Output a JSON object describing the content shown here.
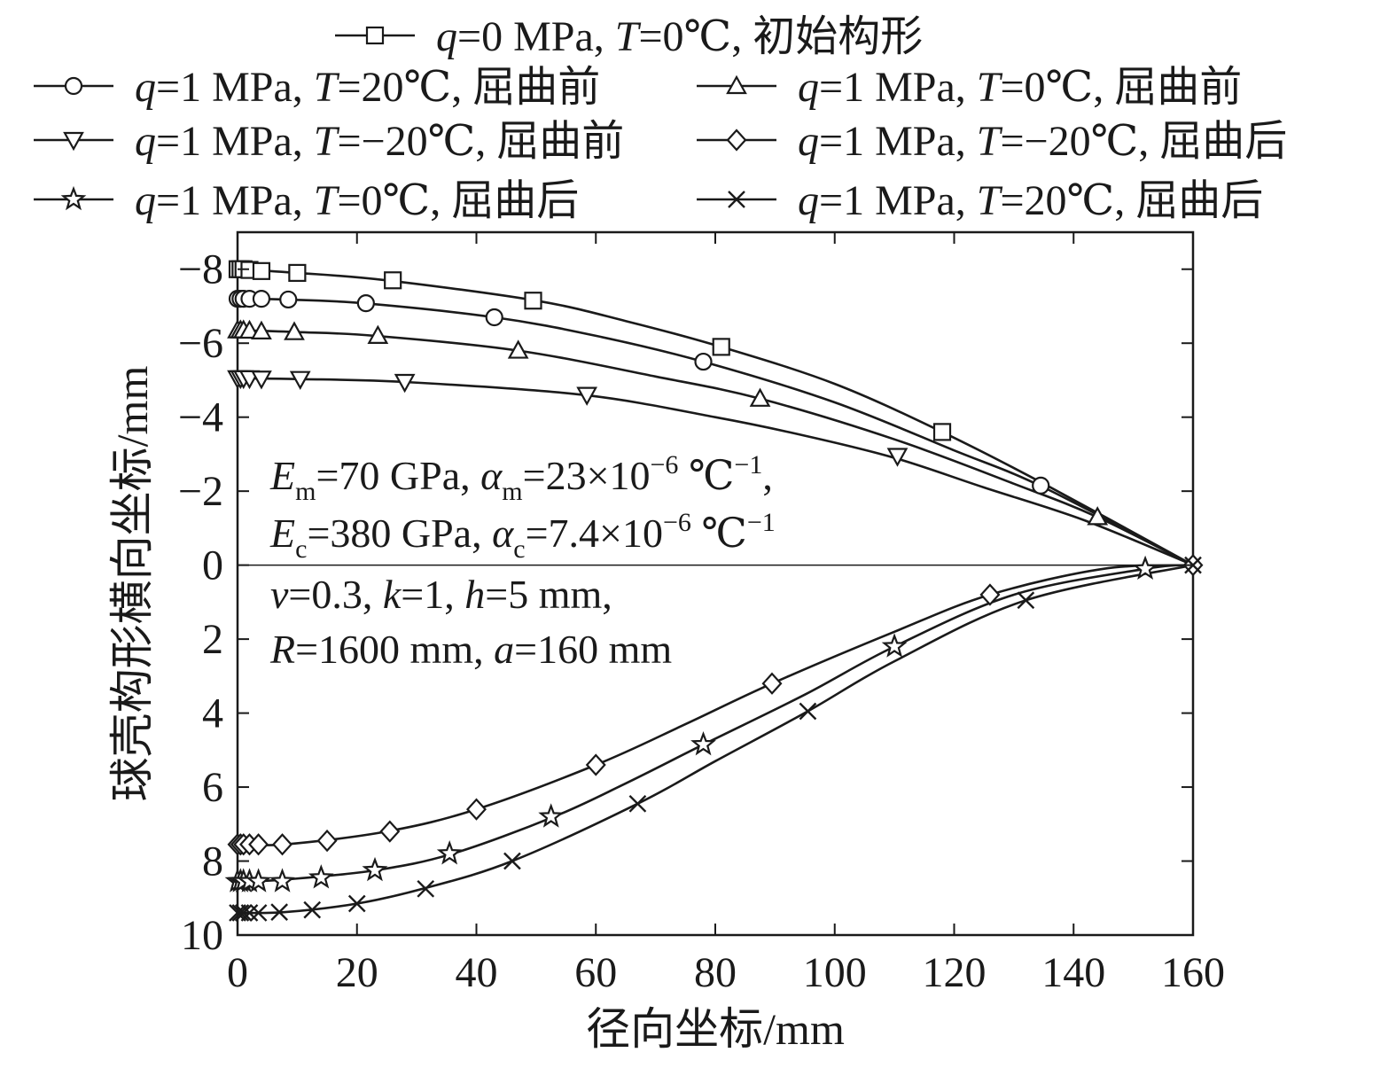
{
  "chart_data": {
    "type": "line",
    "xlabel": "径向坐标/mm",
    "ylabel": "球壳构形横向坐标/mm",
    "xlim": [
      0,
      160
    ],
    "ylim": [
      -9,
      10
    ],
    "y_inverted": true,
    "xticks": [
      0,
      20,
      40,
      60,
      80,
      100,
      120,
      140,
      160
    ],
    "yticks": [
      -8,
      -6,
      -4,
      -2,
      0,
      2,
      4,
      6,
      8,
      10
    ],
    "xtick_labels": [
      "0",
      "20",
      "40",
      "60",
      "80",
      "100",
      "120",
      "140",
      "160"
    ],
    "ytick_labels": [
      "−8",
      "−6",
      "−4",
      "−2",
      "0",
      "2",
      "4",
      "6",
      "8",
      "10"
    ],
    "grid": false,
    "legend_position": "top",
    "series": [
      {
        "key": "s0",
        "name": "q=0 MPa, T=0℃, 初始构形",
        "marker": "square",
        "curve_x": [
          0,
          10,
          25,
          50,
          65,
          81,
          100,
          118,
          135,
          160
        ],
        "curve_y": [
          -8.0,
          -7.9,
          -7.7,
          -7.15,
          -6.6,
          -5.9,
          -4.9,
          -3.6,
          -2.2,
          0.0
        ],
        "marker_x": [
          0,
          0.5,
          1,
          2,
          4,
          10,
          26,
          49.5,
          81,
          118
        ],
        "marker_y": [
          -8.0,
          -8.0,
          -8.0,
          -7.98,
          -7.95,
          -7.9,
          -7.7,
          -7.15,
          -5.9,
          -3.6
        ]
      },
      {
        "key": "s1",
        "name": "q=1 MPa, T=20℃, 屈曲前",
        "marker": "circle",
        "curve_x": [
          0,
          8,
          21,
          43,
          60,
          78,
          100,
          120,
          135,
          160
        ],
        "curve_y": [
          -7.2,
          -7.18,
          -7.08,
          -6.7,
          -6.2,
          -5.5,
          -4.4,
          -3.1,
          -2.1,
          0.0
        ],
        "marker_x": [
          0,
          0.5,
          1,
          2,
          4,
          8.5,
          21.5,
          43,
          78,
          134.5
        ],
        "marker_y": [
          -7.2,
          -7.2,
          -7.2,
          -7.2,
          -7.2,
          -7.18,
          -7.08,
          -6.7,
          -5.5,
          -2.15
        ]
      },
      {
        "key": "s2",
        "name": "q=1 MPa, T=0℃, 屈曲前",
        "marker": "triangle-up",
        "curve_x": [
          0,
          10,
          23,
          47,
          70,
          87.5,
          110,
          130,
          144,
          160
        ],
        "curve_y": [
          -6.35,
          -6.3,
          -6.2,
          -5.8,
          -5.1,
          -4.5,
          -3.4,
          -2.2,
          -1.3,
          0.0
        ],
        "marker_x": [
          0,
          0.5,
          1,
          2,
          4,
          9.5,
          23.5,
          47,
          87.5,
          144
        ],
        "marker_y": [
          -6.35,
          -6.35,
          -6.35,
          -6.34,
          -6.32,
          -6.3,
          -6.2,
          -5.8,
          -4.5,
          -1.3
        ]
      },
      {
        "key": "s3",
        "name": "q=1 MPa, T=−20℃, 屈曲前",
        "marker": "triangle-down",
        "curve_x": [
          0,
          10,
          28,
          58,
          80,
          95,
          110,
          125,
          142,
          160
        ],
        "curve_y": [
          -5.05,
          -5.03,
          -4.95,
          -4.6,
          -4.0,
          -3.5,
          -2.9,
          -2.1,
          -1.2,
          0.0
        ],
        "marker_x": [
          0,
          0.5,
          1,
          2,
          4,
          10.5,
          28,
          58.5,
          110.5
        ],
        "marker_y": [
          -5.05,
          -5.05,
          -5.05,
          -5.05,
          -5.04,
          -5.03,
          -4.95,
          -4.6,
          -2.95
        ]
      },
      {
        "key": "s4",
        "name": "q=1 MPa, T=−20℃, 屈曲后",
        "marker": "diamond",
        "curve_x": [
          0,
          8,
          25,
          40,
          60,
          75,
          89.5,
          110,
          126,
          145,
          160
        ],
        "curve_y": [
          7.55,
          7.55,
          7.2,
          6.6,
          5.4,
          4.3,
          3.2,
          1.8,
          0.8,
          0.1,
          0.0
        ],
        "marker_x": [
          0,
          0.5,
          1,
          2,
          3.5,
          7.5,
          15,
          25.5,
          40,
          60,
          89.5,
          126,
          160
        ],
        "marker_y": [
          7.55,
          7.55,
          7.55,
          7.55,
          7.55,
          7.55,
          7.45,
          7.2,
          6.6,
          5.4,
          3.2,
          0.8,
          0.0
        ]
      },
      {
        "key": "s5",
        "name": "q=1 MPa, T=0℃, 屈曲后",
        "marker": "star",
        "curve_x": [
          0,
          8,
          23,
          36,
          53,
          65,
          78,
          95,
          110,
          130,
          152,
          160
        ],
        "curve_y": [
          8.55,
          8.5,
          8.25,
          7.8,
          6.8,
          5.9,
          4.85,
          3.5,
          2.2,
          0.8,
          0.1,
          0.0
        ],
        "marker_x": [
          0,
          0.5,
          1,
          2,
          3.5,
          7.5,
          14,
          23,
          35.5,
          52.5,
          78,
          110,
          152
        ],
        "marker_y": [
          8.55,
          8.55,
          8.55,
          8.55,
          8.55,
          8.55,
          8.45,
          8.25,
          7.8,
          6.8,
          4.85,
          2.2,
          0.1
        ]
      },
      {
        "key": "s6",
        "name": "q=1 MPa, T=20℃, 屈曲后",
        "marker": "cross",
        "curve_x": [
          0,
          8,
          20,
          31,
          46,
          67,
          80,
          95.5,
          110,
          132,
          160
        ],
        "curve_y": [
          9.4,
          9.38,
          9.15,
          8.75,
          8.0,
          6.45,
          5.3,
          3.95,
          2.6,
          0.95,
          0.0
        ],
        "marker_x": [
          0,
          0.5,
          1,
          2,
          3.5,
          7,
          12.5,
          20,
          31.5,
          46,
          67,
          95.5,
          132,
          160
        ],
        "marker_y": [
          9.4,
          9.4,
          9.4,
          9.4,
          9.4,
          9.38,
          9.32,
          9.15,
          8.75,
          8.0,
          6.45,
          3.95,
          0.95,
          0.0
        ]
      }
    ],
    "zero_line": true,
    "annotation": {
      "line1_parts": [
        [
          "E",
          "it"
        ],
        [
          "m",
          "sub"
        ],
        [
          "=70 GPa, ",
          ""
        ],
        [
          "α",
          "it"
        ],
        [
          "m",
          "sub"
        ],
        [
          "=23×10",
          ""
        ],
        [
          "−6",
          "sup"
        ],
        [
          " ℃",
          ""
        ],
        [
          "−1",
          "sup"
        ],
        [
          ",",
          ""
        ]
      ],
      "line2_parts": [
        [
          "E",
          "it"
        ],
        [
          "c",
          "sub"
        ],
        [
          "=380 GPa, ",
          ""
        ],
        [
          "α",
          "it"
        ],
        [
          "c",
          "sub"
        ],
        [
          "=7.4×10",
          ""
        ],
        [
          "−6",
          "sup"
        ],
        [
          " ℃",
          ""
        ],
        [
          "−1",
          "sup"
        ]
      ],
      "line3_parts": [
        [
          "ν",
          "it"
        ],
        [
          "=0.3, ",
          ""
        ],
        [
          "k",
          "it"
        ],
        [
          "=1, ",
          ""
        ],
        [
          "h",
          "it"
        ],
        [
          "=5 mm,",
          ""
        ]
      ],
      "line4_parts": [
        [
          "R",
          "it"
        ],
        [
          "=1600 mm, ",
          ""
        ],
        [
          "a",
          "it"
        ],
        [
          "=160 mm",
          ""
        ]
      ]
    },
    "legend_parts": {
      "s0": [
        [
          "q",
          "it"
        ],
        [
          "=0 MPa, ",
          ""
        ],
        [
          "T",
          "it"
        ],
        [
          "=0℃, 初始构形",
          ""
        ]
      ],
      "s1": [
        [
          "q",
          "it"
        ],
        [
          "=1 MPa, ",
          ""
        ],
        [
          "T",
          "it"
        ],
        [
          "=20℃, 屈曲前",
          ""
        ]
      ],
      "s2": [
        [
          "q",
          "it"
        ],
        [
          "=1 MPa, ",
          ""
        ],
        [
          "T",
          "it"
        ],
        [
          "=0℃, 屈曲前",
          ""
        ]
      ],
      "s3": [
        [
          "q",
          "it"
        ],
        [
          "=1 MPa, ",
          ""
        ],
        [
          "T",
          "it"
        ],
        [
          "=−20℃, 屈曲前",
          ""
        ]
      ],
      "s4": [
        [
          "q",
          "it"
        ],
        [
          "=1 MPa, ",
          ""
        ],
        [
          "T",
          "it"
        ],
        [
          "=−20℃, 屈曲后",
          ""
        ]
      ],
      "s5": [
        [
          "q",
          "it"
        ],
        [
          "=1 MPa, ",
          ""
        ],
        [
          "T",
          "it"
        ],
        [
          "=0℃, 屈曲后",
          ""
        ]
      ],
      "s6": [
        [
          "q",
          "it"
        ],
        [
          "=1 MPa, ",
          ""
        ],
        [
          "T",
          "it"
        ],
        [
          "=20℃, 屈曲后",
          ""
        ]
      ]
    },
    "colors": {
      "line": "#1a1a1a",
      "marker_fill": "#ffffff"
    }
  }
}
